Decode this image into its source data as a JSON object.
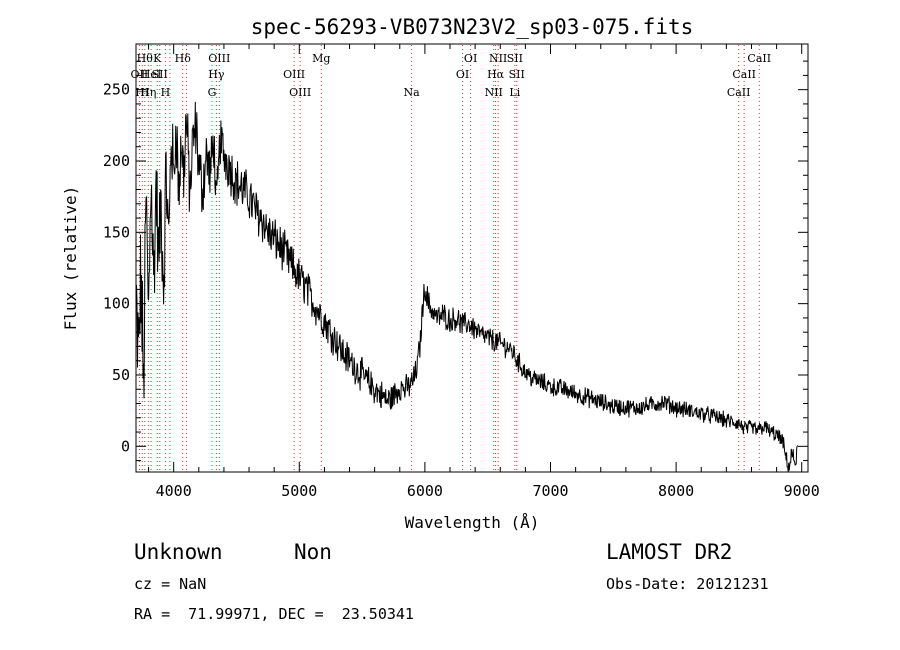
{
  "chart_data": {
    "type": "line",
    "title": "spec-56293-VB073N23V2_sp03-075.fits",
    "xlabel": "Wavelength (Å)",
    "ylabel": "Flux (relative)",
    "xlim": [
      3700,
      9050
    ],
    "ylim": [
      -18,
      282
    ],
    "x_ticks": [
      4000,
      5000,
      6000,
      7000,
      8000,
      9000
    ],
    "y_ticks": [
      0,
      50,
      100,
      150,
      200,
      250
    ],
    "grid": false,
    "line_color": "#000000",
    "marker_color": "#cc3333",
    "spectrum_anchors": [
      [
        3700,
        95
      ],
      [
        3720,
        60
      ],
      [
        3740,
        120
      ],
      [
        3760,
        40
      ],
      [
        3780,
        170
      ],
      [
        3800,
        90
      ],
      [
        3820,
        200
      ],
      [
        3840,
        110
      ],
      [
        3860,
        185
      ],
      [
        3880,
        130
      ],
      [
        3900,
        170
      ],
      [
        3920,
        110
      ],
      [
        3940,
        195
      ],
      [
        3960,
        140
      ],
      [
        3980,
        220
      ],
      [
        4000,
        185
      ],
      [
        4020,
        230
      ],
      [
        4040,
        175
      ],
      [
        4060,
        215
      ],
      [
        4080,
        190
      ],
      [
        4100,
        230
      ],
      [
        4130,
        175
      ],
      [
        4150,
        210
      ],
      [
        4180,
        225
      ],
      [
        4200,
        195
      ],
      [
        4230,
        180
      ],
      [
        4260,
        205
      ],
      [
        4290,
        190
      ],
      [
        4320,
        215
      ],
      [
        4340,
        165
      ],
      [
        4370,
        215
      ],
      [
        4400,
        205
      ],
      [
        4450,
        195
      ],
      [
        4500,
        185
      ],
      [
        4550,
        180
      ],
      [
        4600,
        175
      ],
      [
        4650,
        165
      ],
      [
        4700,
        160
      ],
      [
        4750,
        150
      ],
      [
        4800,
        145
      ],
      [
        4850,
        140
      ],
      [
        4900,
        133
      ],
      [
        4950,
        125
      ],
      [
        5000,
        118
      ],
      [
        5050,
        112
      ],
      [
        5100,
        103
      ],
      [
        5150,
        95
      ],
      [
        5200,
        88
      ],
      [
        5250,
        80
      ],
      [
        5300,
        73
      ],
      [
        5350,
        65
      ],
      [
        5400,
        60
      ],
      [
        5450,
        55
      ],
      [
        5500,
        50
      ],
      [
        5550,
        45
      ],
      [
        5600,
        40
      ],
      [
        5650,
        36
      ],
      [
        5700,
        32
      ],
      [
        5750,
        35
      ],
      [
        5800,
        42
      ],
      [
        5850,
        40
      ],
      [
        5900,
        45
      ],
      [
        5930,
        52
      ],
      [
        5960,
        70
      ],
      [
        5980,
        95
      ],
      [
        6000,
        112
      ],
      [
        6030,
        100
      ],
      [
        6060,
        95
      ],
      [
        6100,
        90
      ],
      [
        6150,
        92
      ],
      [
        6200,
        88
      ],
      [
        6250,
        90
      ],
      [
        6300,
        85
      ],
      [
        6350,
        86
      ],
      [
        6400,
        82
      ],
      [
        6450,
        78
      ],
      [
        6500,
        76
      ],
      [
        6550,
        74
      ],
      [
        6600,
        72
      ],
      [
        6650,
        70
      ],
      [
        6700,
        66
      ],
      [
        6750,
        58
      ],
      [
        6800,
        52
      ],
      [
        6850,
        48
      ],
      [
        6900,
        46
      ],
      [
        6950,
        44
      ],
      [
        7000,
        42
      ],
      [
        7100,
        40
      ],
      [
        7200,
        37
      ],
      [
        7300,
        34
      ],
      [
        7400,
        31
      ],
      [
        7500,
        28
      ],
      [
        7600,
        27
      ],
      [
        7700,
        27
      ],
      [
        7800,
        29
      ],
      [
        7900,
        31
      ],
      [
        8000,
        27
      ],
      [
        8100,
        25
      ],
      [
        8200,
        23
      ],
      [
        8300,
        21
      ],
      [
        8400,
        18
      ],
      [
        8500,
        16
      ],
      [
        8550,
        12
      ],
      [
        8600,
        13
      ],
      [
        8650,
        11
      ],
      [
        8700,
        14
      ],
      [
        8750,
        10
      ],
      [
        8800,
        8
      ],
      [
        8850,
        3
      ],
      [
        8880,
        -10
      ],
      [
        8900,
        -15
      ],
      [
        8920,
        -5
      ],
      [
        8950,
        -12
      ],
      [
        8970,
        0
      ]
    ],
    "noise_bands": [
      [
        3700,
        45
      ],
      [
        4000,
        25
      ],
      [
        4400,
        16
      ],
      [
        5100,
        12
      ],
      [
        5500,
        10
      ],
      [
        6050,
        8
      ],
      [
        7000,
        6
      ],
      [
        8500,
        5
      ],
      [
        9000,
        5
      ]
    ],
    "line_markers": [
      {
        "x": 3727,
        "labels": [
          "OII"
        ],
        "row": 2
      },
      {
        "x": 3750,
        "labels": [
          "HI"
        ],
        "row": 3
      },
      {
        "x": 3770,
        "labels": [
          "Hθ"
        ],
        "row": 1
      },
      {
        "x": 3798,
        "labels": [
          "Hη"
        ],
        "row": 3
      },
      {
        "x": 3820,
        "labels": [
          "HeI"
        ],
        "row": 2
      },
      {
        "x": 3869,
        "labels": [
          "K"
        ],
        "row": 1
      },
      {
        "x": 3889,
        "labels": [
          "SII"
        ],
        "row": 2
      },
      {
        "x": 3934,
        "labels": [
          "H"
        ],
        "row": 3
      },
      {
        "x": 3970,
        "labels": [],
        "row": 0
      },
      {
        "x": 4072,
        "labels": [
          "Hδ"
        ],
        "row": 1
      },
      {
        "x": 4102,
        "labels": [],
        "row": 0
      },
      {
        "x": 4305,
        "labels": [
          "G"
        ],
        "row": 3
      },
      {
        "x": 4340,
        "labels": [
          "Hγ"
        ],
        "row": 2
      },
      {
        "x": 4363,
        "labels": [
          "OIII"
        ],
        "row": 1
      },
      {
        "x": 4959,
        "labels": [
          "OIII"
        ],
        "row": 2
      },
      {
        "x": 5007,
        "labels": [
          "OIII"
        ],
        "row": 3
      },
      {
        "x": 5175,
        "labels": [
          "Mg"
        ],
        "row": 1
      },
      {
        "x": 5894,
        "labels": [
          "Na"
        ],
        "row": 3
      },
      {
        "x": 6300,
        "labels": [
          "OI"
        ],
        "row": 2
      },
      {
        "x": 6364,
        "labels": [
          "OI"
        ],
        "row": 1
      },
      {
        "x": 6548,
        "labels": [
          "NII"
        ],
        "row": 3
      },
      {
        "x": 6563,
        "labels": [
          "Hα"
        ],
        "row": 2
      },
      {
        "x": 6583,
        "labels": [
          "NII"
        ],
        "row": 1
      },
      {
        "x": 6716,
        "labels": [
          "SII",
          "Li"
        ],
        "row": 1
      },
      {
        "x": 6731,
        "labels": [
          "SII"
        ],
        "row": 2
      },
      {
        "x": 8498,
        "labels": [
          "CaII"
        ],
        "row": 3
      },
      {
        "x": 8542,
        "labels": [
          "CaII"
        ],
        "row": 2
      },
      {
        "x": 8662,
        "labels": [
          "CaII"
        ],
        "row": 1
      }
    ]
  },
  "object_class": "Unknown",
  "object_subclass": "Non",
  "survey": "LAMOST DR2",
  "redshift_text": "cz = NaN",
  "obs_date_text": "Obs-Date: 20121231",
  "coords_text": "RA =  71.99971, DEC =  23.50341"
}
